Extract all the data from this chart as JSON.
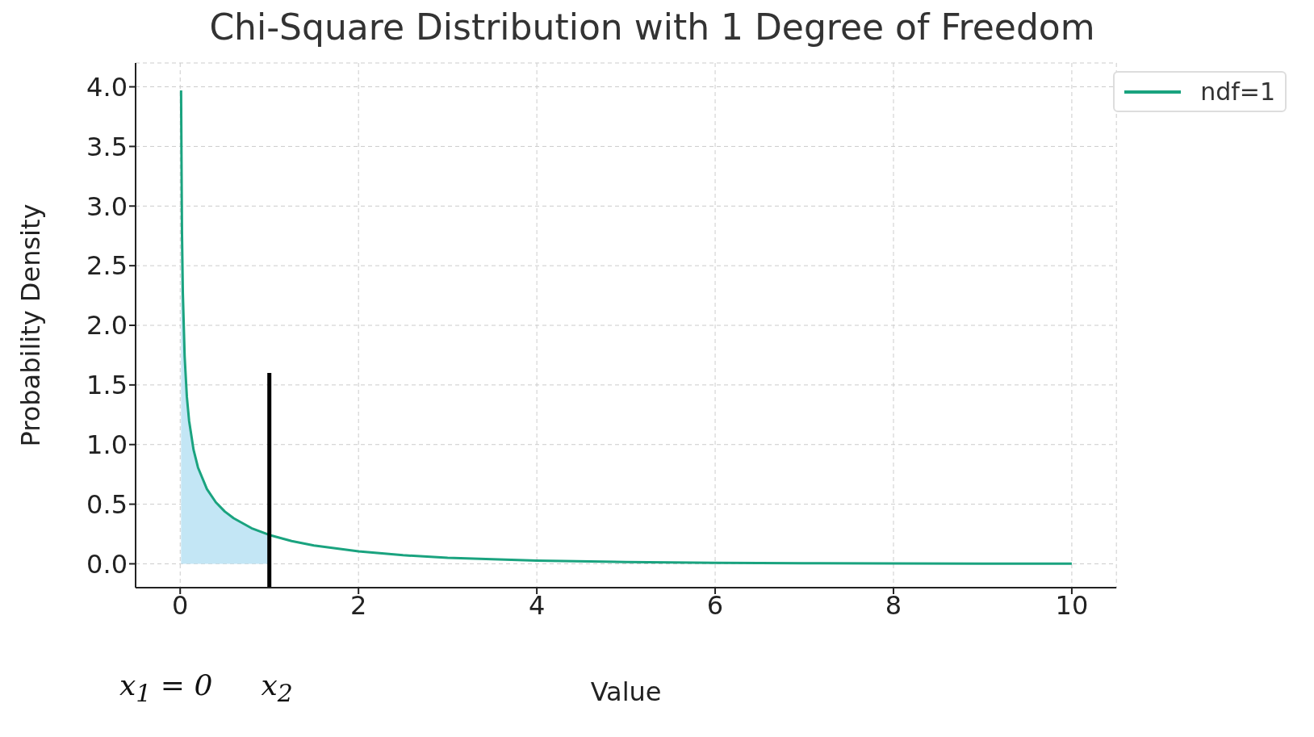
{
  "chart_data": {
    "type": "line",
    "title": "Chi-Square Distribution with 1 Degree of Freedom",
    "xlabel": "Value",
    "ylabel": "Probability Density",
    "xlim": [
      -0.5,
      10.5
    ],
    "xticks": [
      0,
      2,
      4,
      6,
      8,
      10
    ],
    "ylim": [
      -0.2,
      4.2
    ],
    "yticks": [
      {
        "value": 0,
        "label": "0.0"
      },
      {
        "value": 0.5,
        "label": "0.5"
      },
      {
        "value": 1,
        "label": "1.0"
      },
      {
        "value": 1.5,
        "label": "1.5"
      },
      {
        "value": 2,
        "label": "2.0"
      },
      {
        "value": 2.5,
        "label": "2.5"
      },
      {
        "value": 3,
        "label": "3.0"
      },
      {
        "value": 3.5,
        "label": "3.5"
      },
      {
        "value": 4,
        "label": "4.0"
      }
    ],
    "grid": true,
    "legend": "top right",
    "line_style": "solid",
    "marker": "none",
    "series": [
      {
        "type": "area",
        "color": "#c3e6f5",
        "x": [
          0.01,
          0.02,
          0.03,
          0.05,
          0.075,
          0.1,
          0.15,
          0.2,
          0.3,
          0.4,
          0.5,
          0.6,
          0.8,
          1
        ],
        "values": [
          3.97,
          2.79,
          2.27,
          1.74,
          1.4,
          1.2,
          0.956,
          0.807,
          0.627,
          0.516,
          0.439,
          0.382,
          0.299,
          0.242
        ]
      },
      {
        "name": "ndf=1",
        "color": "#1aa37f",
        "x": [
          0.01,
          0.02,
          0.03,
          0.05,
          0.075,
          0.1,
          0.15,
          0.2,
          0.3,
          0.4,
          0.5,
          0.6,
          0.8,
          1,
          1.25,
          1.5,
          2,
          2.5,
          3,
          4,
          5,
          6,
          7,
          8,
          9,
          10
        ],
        "values": [
          3.97,
          2.79,
          2.27,
          1.74,
          1.4,
          1.2,
          0.956,
          0.807,
          0.627,
          0.516,
          0.439,
          0.382,
          0.299,
          0.242,
          0.191,
          0.154,
          0.104,
          0.072,
          0.051,
          0.027,
          0.015,
          0.008,
          0.005,
          0.003,
          0.002,
          0.001
        ]
      },
      {
        "color": "#000000",
        "x": [
          1,
          1
        ],
        "values": [
          -0.2,
          1.6
        ]
      }
    ],
    "annotations": [
      "x$_{1}$ = 0",
      "x$_{2}$"
    ]
  }
}
